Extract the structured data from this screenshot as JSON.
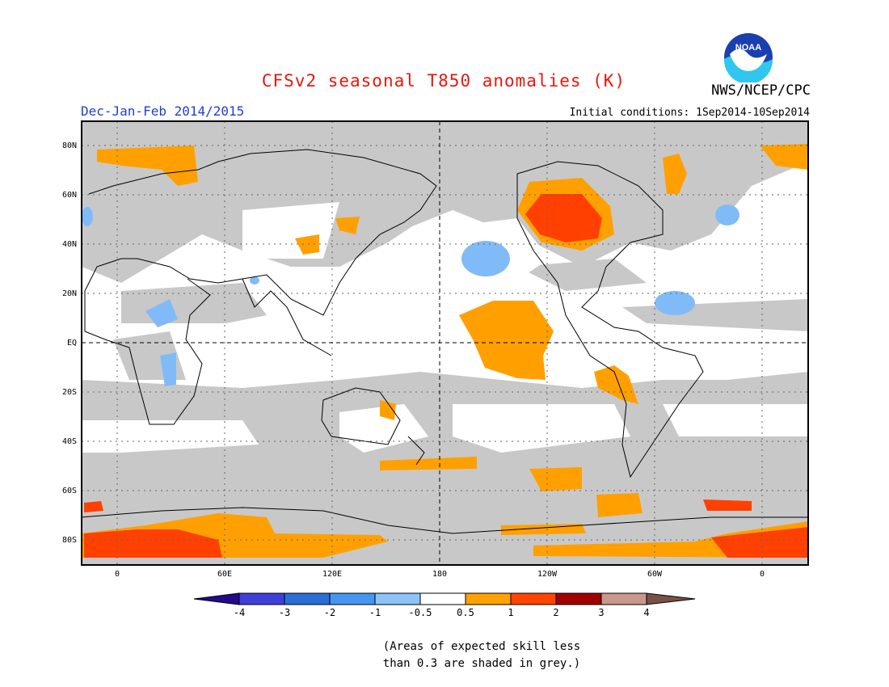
{
  "title": "CFSv2 seasonal T850 anomalies (K)",
  "agency": "NWS/NCEP/CPC",
  "logo_text": "NOAA",
  "period": "Dec-Jan-Feb 2014/2015",
  "initial_conditions": "Initial conditions: 1Sep2014-10Sep2014",
  "lat_labels": [
    "80N",
    "60N",
    "40N",
    "20N",
    "EQ",
    "20S",
    "40S",
    "60S",
    "80S"
  ],
  "lon_labels": [
    "0",
    "60E",
    "120E",
    "180",
    "120W",
    "60W",
    "0"
  ],
  "colorbar": {
    "labels": [
      "-4",
      "-3",
      "-2",
      "-1",
      "-0.5",
      "0.5",
      "1",
      "2",
      "3",
      "4"
    ],
    "colors": [
      "#230a8c",
      "#3f3fd9",
      "#2a6ed8",
      "#4596f0",
      "#8cc4f7",
      "#ffffff",
      "#ffa100",
      "#ff4500",
      "#a00000",
      "#c8988a",
      "#7a5048"
    ]
  },
  "skill_note": [
    "(Areas of expected skill less",
    "than 0.3 are shaded in grey.)"
  ],
  "colors": {
    "grey_mask": "#c8c8c8",
    "warm": "#ffa000",
    "hot": "#ff4000",
    "cool": "#80bbf7"
  }
}
